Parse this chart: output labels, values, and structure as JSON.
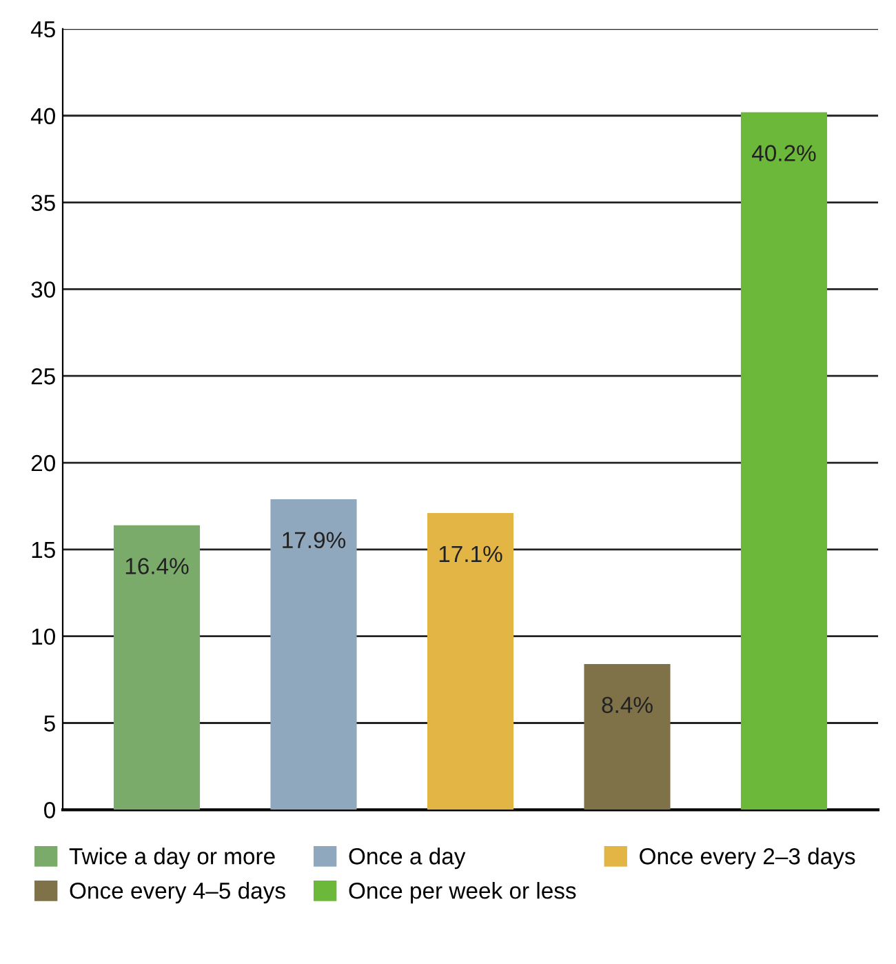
{
  "chart_data": {
    "type": "bar",
    "categories": [
      null
    ],
    "series": [
      {
        "name": "Twice a day or more",
        "color": "#7aab6a",
        "values": [
          16.4
        ],
        "value_labels": [
          "16.4%"
        ]
      },
      {
        "name": "Once a day",
        "color": "#8fa8bd",
        "values": [
          17.9
        ],
        "value_labels": [
          "17.9%"
        ]
      },
      {
        "name": "Once every 2–3 days",
        "color": "#e2b545",
        "values": [
          17.1
        ],
        "value_labels": [
          "17.1%"
        ]
      },
      {
        "name": "Once every 4–5 days",
        "color": "#7f7148",
        "values": [
          8.4
        ],
        "value_labels": [
          "8.4%"
        ]
      },
      {
        "name": "Once per week or less",
        "color": "#6cb83a",
        "values": [
          40.2
        ],
        "value_labels": [
          "40.2%"
        ]
      }
    ],
    "ylim": [
      0,
      45
    ],
    "yticks": [
      0,
      5,
      10,
      15,
      20,
      25,
      30,
      35,
      40,
      45
    ],
    "grid": "y",
    "legend": "bottom",
    "tick_labels": "y"
  }
}
